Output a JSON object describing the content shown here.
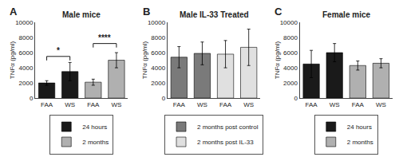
{
  "chart_data": [
    {
      "type": "bar",
      "title": "Male mice",
      "panel_label": "A",
      "y_label": "TNFα (pg/ml)",
      "categories": [
        "FAA",
        "WS",
        "FAA",
        "WS"
      ],
      "series": [
        {
          "name": "24 hours",
          "color": "#1a1a1a",
          "values": [
            2000,
            3500,
            null,
            null
          ],
          "errors": [
            300,
            1200,
            null,
            null
          ]
        },
        {
          "name": "2 months",
          "color": "#b0b0b0",
          "values": [
            null,
            null,
            2100,
            5000
          ],
          "errors": [
            null,
            null,
            400,
            1000
          ]
        }
      ],
      "ylim": [
        0,
        10000
      ],
      "yticks": [
        0,
        2000,
        4000,
        6000,
        8000,
        10000
      ],
      "grid": false,
      "legend": "bottom",
      "annotations": [
        {
          "text": "*",
          "x": [
            0,
            1
          ],
          "y": 5500
        },
        {
          "text": "****",
          "x": [
            2,
            3
          ],
          "y": 7200
        }
      ]
    },
    {
      "type": "bar",
      "title": "Male IL-33 Treated",
      "panel_label": "B",
      "y_label": "TNFα (pg/ml)",
      "categories": [
        "FAA",
        "WS",
        "FAA",
        "WS"
      ],
      "series": [
        {
          "name": "2 months post control",
          "color": "#7a7a7a",
          "values": [
            5400,
            5900,
            null,
            null
          ],
          "errors": [
            1400,
            1500,
            null,
            null
          ]
        },
        {
          "name": "2 months post IL-33",
          "color": "#e0e0e0",
          "values": [
            null,
            null,
            5800,
            6700
          ],
          "errors": [
            null,
            null,
            1800,
            2400
          ]
        }
      ],
      "ylim": [
        0,
        10000
      ],
      "yticks": [
        0,
        2000,
        4000,
        6000,
        8000,
        10000
      ],
      "grid": false,
      "legend": "bottom"
    },
    {
      "type": "bar",
      "title": "Female mice",
      "panel_label": "C",
      "y_label": "TNFα (pg/ml)",
      "categories": [
        "FAA",
        "WS",
        "FAA",
        "WS"
      ],
      "series": [
        {
          "name": "24 hours",
          "color": "#1a1a1a",
          "values": [
            4500,
            6000,
            null,
            null
          ],
          "errors": [
            1800,
            1200,
            null,
            null
          ]
        },
        {
          "name": "2 months",
          "color": "#b0b0b0",
          "values": [
            null,
            null,
            4300,
            4600
          ],
          "errors": [
            null,
            null,
            600,
            600
          ]
        }
      ],
      "ylim": [
        0,
        10000
      ],
      "yticks": [
        0,
        2000,
        4000,
        6000,
        8000,
        10000
      ],
      "grid": false,
      "legend": "bottom"
    }
  ]
}
